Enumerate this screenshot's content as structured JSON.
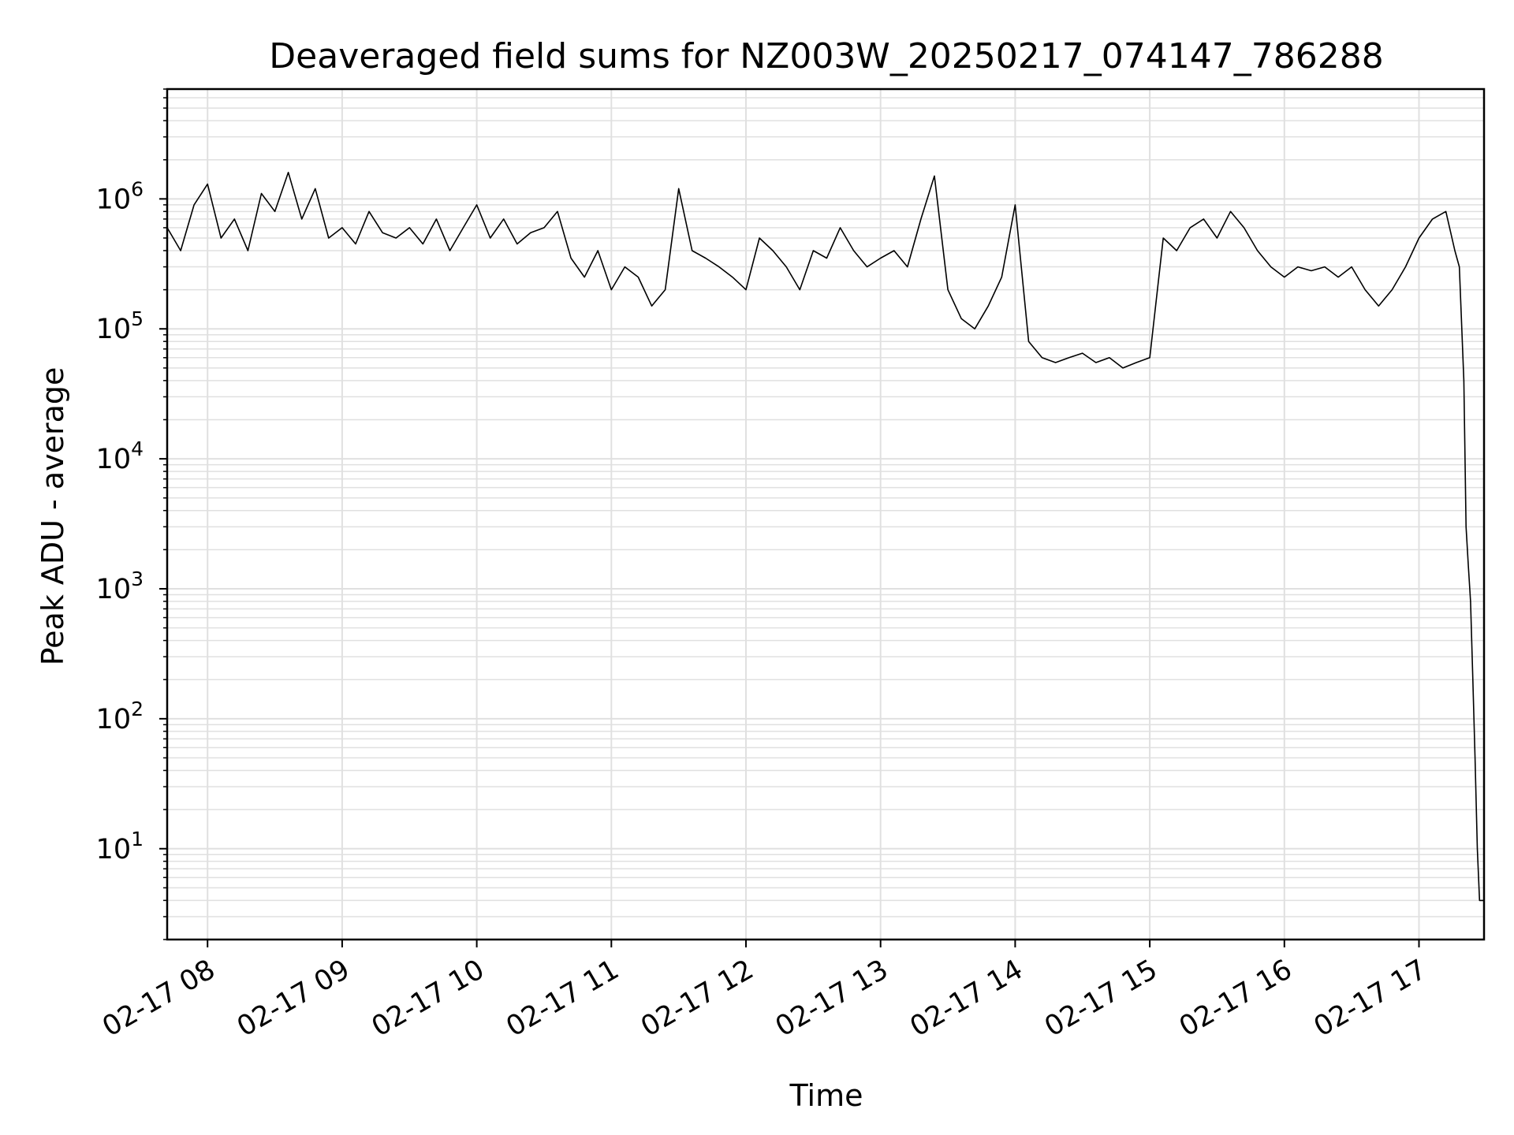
{
  "chart_data": {
    "type": "line",
    "title": "Deaveraged field sums for NZ003W_20250217_074147_786288",
    "xlabel": "Time",
    "ylabel": "Peak ADU - average",
    "x_type": "datetime",
    "x_range": [
      "2025-02-17 07:42",
      "2025-02-17 17:29"
    ],
    "y_scale": "log",
    "ylim": [
      2,
      7000000
    ],
    "grid": true,
    "line_color": "#000000",
    "grid_color": "#e0e0e0",
    "x_tick_labels": [
      "02-17 08",
      "02-17 09",
      "02-17 10",
      "02-17 11",
      "02-17 12",
      "02-17 13",
      "02-17 14",
      "02-17 15",
      "02-17 16",
      "02-17 17"
    ],
    "y_ticks": [
      {
        "base": "10",
        "exp": "1"
      },
      {
        "base": "10",
        "exp": "2"
      },
      {
        "base": "10",
        "exp": "3"
      },
      {
        "base": "10",
        "exp": "4"
      },
      {
        "base": "10",
        "exp": "5"
      },
      {
        "base": "10",
        "exp": "6"
      }
    ],
    "series": [
      {
        "x": [
          "07:42",
          "07:48",
          "07:54",
          "08:00",
          "08:06",
          "08:12",
          "08:18",
          "08:24",
          "08:30",
          "08:36",
          "08:42",
          "08:48",
          "08:54",
          "09:00",
          "09:06",
          "09:12",
          "09:18",
          "09:24",
          "09:30",
          "09:36",
          "09:42",
          "09:48",
          "09:54",
          "10:00",
          "10:06",
          "10:12",
          "10:18",
          "10:24",
          "10:30",
          "10:36",
          "10:42",
          "10:48",
          "10:54",
          "11:00",
          "11:06",
          "11:12",
          "11:18",
          "11:24",
          "11:30",
          "11:36",
          "11:42",
          "11:48",
          "11:54",
          "12:00",
          "12:06",
          "12:12",
          "12:18",
          "12:24",
          "12:30",
          "12:36",
          "12:42",
          "12:48",
          "12:54",
          "13:00",
          "13:06",
          "13:12",
          "13:18",
          "13:24",
          "13:30",
          "13:36",
          "13:42",
          "13:48",
          "13:54",
          "14:00",
          "14:06",
          "14:12",
          "14:18",
          "14:24",
          "14:30",
          "14:36",
          "14:42",
          "14:48",
          "14:54",
          "15:00",
          "15:06",
          "15:12",
          "15:18",
          "15:24",
          "15:30",
          "15:36",
          "15:42",
          "15:48",
          "15:54",
          "16:00",
          "16:06",
          "16:12",
          "16:18",
          "16:24",
          "16:30",
          "16:36",
          "16:42",
          "16:48",
          "16:54",
          "17:00",
          "17:06",
          "17:12",
          "17:16",
          "17:18",
          "17:20",
          "17:21",
          "17:22",
          "17:23",
          "17:24",
          "17:25",
          "17:26",
          "17:27",
          "17:28",
          "17:29"
        ],
        "y": [
          600000,
          400000,
          900000,
          1300000,
          500000,
          700000,
          400000,
          1100000,
          800000,
          1600000,
          700000,
          1200000,
          500000,
          600000,
          450000,
          800000,
          550000,
          500000,
          600000,
          450000,
          700000,
          400000,
          600000,
          900000,
          500000,
          700000,
          450000,
          550000,
          600000,
          800000,
          350000,
          250000,
          400000,
          200000,
          300000,
          250000,
          150000,
          200000,
          1200000,
          400000,
          350000,
          300000,
          250000,
          200000,
          500000,
          400000,
          300000,
          200000,
          400000,
          350000,
          600000,
          400000,
          300000,
          350000,
          400000,
          300000,
          700000,
          1500000,
          200000,
          120000,
          100000,
          150000,
          250000,
          900000,
          80000,
          60000,
          55000,
          60000,
          65000,
          55000,
          60000,
          50000,
          55000,
          60000,
          500000,
          400000,
          600000,
          700000,
          500000,
          800000,
          600000,
          400000,
          300000,
          250000,
          300000,
          280000,
          300000,
          250000,
          300000,
          200000,
          150000,
          200000,
          300000,
          500000,
          700000,
          800000,
          400000,
          300000,
          40000,
          3000,
          1500,
          800,
          200,
          50,
          10,
          4,
          4,
          4
        ]
      }
    ]
  }
}
